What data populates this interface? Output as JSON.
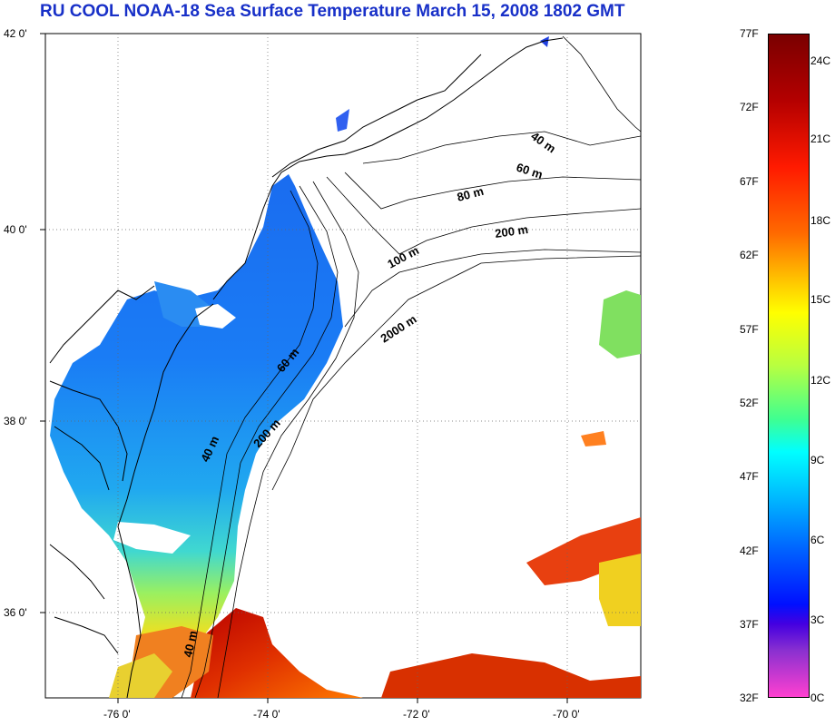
{
  "title": "RU COOL  NOAA-18 Sea Surface Temperature March 15, 2008 1802 GMT",
  "map": {
    "lat_labels": [
      "42 0'",
      "40 0'",
      "38 0'",
      "36 0'"
    ],
    "lon_labels": [
      "-76 0'",
      "-74 0'",
      "-72 0'",
      "-70 0'"
    ],
    "contour_labels": [
      "40 m",
      "60 m",
      "80 m",
      "200 m",
      "100 m",
      "2000 m",
      "60 m",
      "200 m",
      "40 m",
      "40 m"
    ],
    "colors": {
      "land_line": "#000000",
      "ocean_cold": "#1a5cff",
      "ocean_warm": "#c81000",
      "title": "#1830c8"
    }
  },
  "colorbar": {
    "fahrenheit_labels": [
      "77F",
      "72F",
      "67F",
      "62F",
      "57F",
      "52F",
      "47F",
      "42F",
      "37F",
      "32F"
    ],
    "celsius_labels": [
      "24C",
      "21C",
      "18C",
      "15C",
      "12C",
      "9C",
      "6C",
      "3C",
      "0C"
    ]
  }
}
